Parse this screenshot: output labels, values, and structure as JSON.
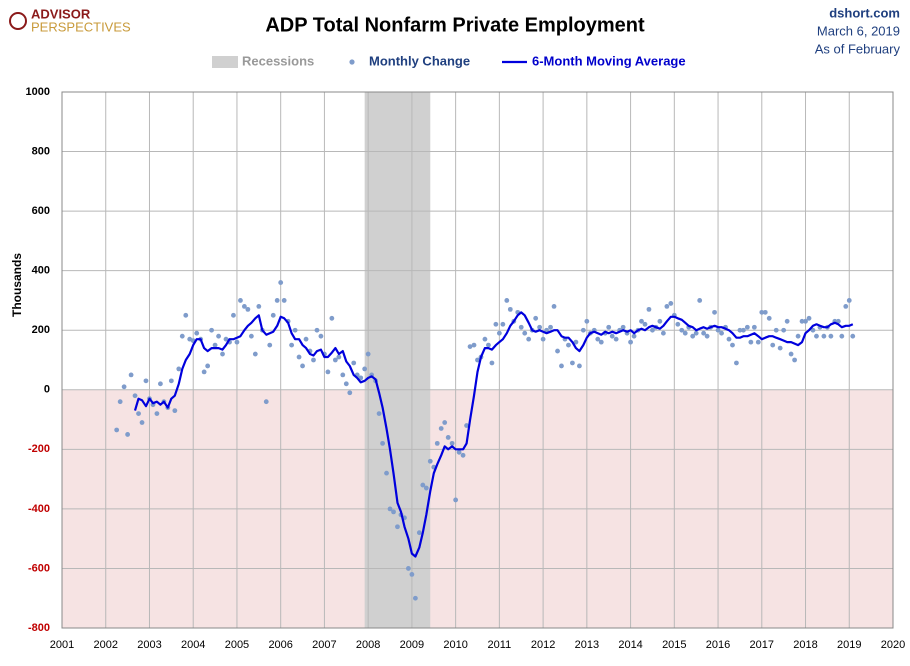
{
  "chart_data": {
    "type": "line",
    "title": "ADP Total Nonfarm Private Employment",
    "logo_top": "ADVISOR",
    "logo_bottom": "PERSPECTIVES",
    "source": "dshort.com",
    "date": "March 6, 2019",
    "as_of": "As of February",
    "ylabel": "Thousands",
    "xlim": [
      2001,
      2020
    ],
    "xticks": [
      2001,
      2002,
      2003,
      2004,
      2005,
      2006,
      2007,
      2008,
      2009,
      2010,
      2011,
      2012,
      2013,
      2014,
      2015,
      2016,
      2017,
      2018,
      2019,
      2020
    ],
    "ylim": [
      -800,
      1000
    ],
    "yticks": [
      -800,
      -600,
      -400,
      -200,
      0,
      200,
      400,
      600,
      800,
      1000
    ],
    "grid": true,
    "negative_fill": "#f6e3e3",
    "recessions": {
      "name": "Recessions",
      "color": "#d0d0d0",
      "ranges": [
        [
          2007.92,
          2009.42
        ]
      ]
    },
    "x": [
      2002.25,
      2002.33,
      2002.42,
      2002.5,
      2002.58,
      2002.67,
      2002.75,
      2002.83,
      2002.92,
      2003,
      2003.08,
      2003.17,
      2003.25,
      2003.33,
      2003.42,
      2003.5,
      2003.58,
      2003.67,
      2003.75,
      2003.83,
      2003.92,
      2004,
      2004.08,
      2004.17,
      2004.25,
      2004.33,
      2004.42,
      2004.5,
      2004.58,
      2004.67,
      2004.75,
      2004.83,
      2004.92,
      2005,
      2005.08,
      2005.17,
      2005.25,
      2005.33,
      2005.42,
      2005.5,
      2005.58,
      2005.67,
      2005.75,
      2005.83,
      2005.92,
      2006,
      2006.08,
      2006.17,
      2006.25,
      2006.33,
      2006.42,
      2006.5,
      2006.58,
      2006.67,
      2006.75,
      2006.83,
      2006.92,
      2007,
      2007.08,
      2007.17,
      2007.25,
      2007.33,
      2007.42,
      2007.5,
      2007.58,
      2007.67,
      2007.75,
      2007.83,
      2007.92,
      2008,
      2008.08,
      2008.17,
      2008.25,
      2008.33,
      2008.42,
      2008.5,
      2008.58,
      2008.67,
      2008.75,
      2008.83,
      2008.92,
      2009,
      2009.08,
      2009.17,
      2009.25,
      2009.33,
      2009.42,
      2009.5,
      2009.58,
      2009.67,
      2009.75,
      2009.83,
      2009.92,
      2010,
      2010.08,
      2010.17,
      2010.25,
      2010.33,
      2010.42,
      2010.5,
      2010.58,
      2010.67,
      2010.75,
      2010.83,
      2010.92,
      2011,
      2011.08,
      2011.17,
      2011.25,
      2011.33,
      2011.42,
      2011.5,
      2011.58,
      2011.67,
      2011.75,
      2011.83,
      2011.92,
      2012,
      2012.08,
      2012.17,
      2012.25,
      2012.33,
      2012.42,
      2012.5,
      2012.58,
      2012.67,
      2012.75,
      2012.83,
      2012.92,
      2013,
      2013.08,
      2013.17,
      2013.25,
      2013.33,
      2013.42,
      2013.5,
      2013.58,
      2013.67,
      2013.75,
      2013.83,
      2013.92,
      2014,
      2014.08,
      2014.17,
      2014.25,
      2014.33,
      2014.42,
      2014.5,
      2014.58,
      2014.67,
      2014.75,
      2014.83,
      2014.92,
      2015,
      2015.08,
      2015.17,
      2015.25,
      2015.33,
      2015.42,
      2015.5,
      2015.58,
      2015.67,
      2015.75,
      2015.83,
      2015.92,
      2016,
      2016.08,
      2016.17,
      2016.25,
      2016.33,
      2016.42,
      2016.5,
      2016.58,
      2016.67,
      2016.75,
      2016.83,
      2016.92,
      2017,
      2017.08,
      2017.17,
      2017.25,
      2017.33,
      2017.42,
      2017.5,
      2017.58,
      2017.67,
      2017.75,
      2017.83,
      2017.92,
      2018,
      2018.08,
      2018.17,
      2018.25,
      2018.33,
      2018.42,
      2018.5,
      2018.58,
      2018.67,
      2018.75,
      2018.83,
      2018.92,
      2019,
      2019.08
    ],
    "series": [
      {
        "name": "Monthly Change",
        "color": "#7f9ccb",
        "style": "dots",
        "values": [
          -135,
          -40,
          10,
          -150,
          50,
          -20,
          -80,
          -110,
          30,
          -30,
          -50,
          -80,
          20,
          -40,
          -60,
          30,
          -70,
          70,
          180,
          250,
          170,
          165,
          190,
          170,
          60,
          80,
          200,
          150,
          180,
          120,
          170,
          160,
          250,
          160,
          300,
          280,
          270,
          180,
          120,
          280,
          200,
          -40,
          150,
          250,
          300,
          360,
          300,
          230,
          150,
          200,
          110,
          80,
          170,
          130,
          100,
          200,
          180,
          120,
          60,
          240,
          100,
          110,
          50,
          20,
          -10,
          90,
          50,
          40,
          70,
          120,
          50,
          30,
          -80,
          -180,
          -280,
          -400,
          -410,
          -460,
          -420,
          -430,
          -600,
          -620,
          -700,
          -480,
          -320,
          -330,
          -240,
          -260,
          -180,
          -130,
          -110,
          -160,
          -180,
          -370,
          -210,
          -220,
          -120,
          145,
          150,
          100,
          110,
          170,
          150,
          90,
          220,
          190,
          220,
          300,
          270,
          230,
          260,
          210,
          190,
          170,
          200,
          240,
          210,
          170,
          200,
          210,
          280,
          130,
          80,
          170,
          150,
          90,
          160,
          80,
          200,
          230,
          190,
          200,
          170,
          160,
          190,
          210,
          180,
          170,
          200,
          210,
          190,
          160,
          180,
          200,
          230,
          220,
          270,
          200,
          210,
          230,
          190,
          280,
          290,
          250,
          220,
          200,
          190,
          210,
          180,
          190,
          300,
          190,
          180,
          210,
          260,
          200,
          190,
          210,
          170,
          150,
          90,
          200,
          200,
          210,
          160,
          210,
          160,
          260,
          260,
          240,
          150,
          200,
          140,
          200,
          230,
          120,
          100,
          180,
          230,
          230,
          240,
          200,
          180,
          210,
          180,
          210,
          180,
          230,
          230,
          180,
          280,
          300,
          180
        ]
      },
      {
        "name": "6-Month Moving Average",
        "color": "#0000dd",
        "style": "line",
        "values": [
          null,
          null,
          null,
          null,
          null,
          -70,
          -30,
          -35,
          -55,
          -30,
          -45,
          -40,
          -50,
          -40,
          -60,
          -30,
          -20,
          20,
          70,
          100,
          120,
          150,
          170,
          170,
          140,
          130,
          140,
          140,
          140,
          135,
          150,
          170,
          170,
          175,
          180,
          200,
          215,
          225,
          240,
          250,
          200,
          185,
          190,
          195,
          215,
          245,
          240,
          225,
          190,
          170,
          170,
          150,
          140,
          120,
          115,
          130,
          135,
          110,
          110,
          125,
          140,
          120,
          130,
          95,
          80,
          50,
          40,
          25,
          30,
          40,
          45,
          35,
          -10,
          -60,
          -130,
          -200,
          -280,
          -380,
          -410,
          -460,
          -500,
          -550,
          -560,
          -530,
          -480,
          -420,
          -340,
          -280,
          -250,
          -220,
          -190,
          -200,
          -190,
          -200,
          -200,
          -200,
          -180,
          -100,
          -20,
          60,
          110,
          140,
          140,
          135,
          150,
          160,
          170,
          190,
          215,
          230,
          250,
          260,
          250,
          225,
          200,
          195,
          200,
          195,
          190,
          195,
          200,
          200,
          180,
          175,
          175,
          160,
          140,
          130,
          150,
          175,
          190,
          195,
          190,
          185,
          195,
          190,
          195,
          190,
          195,
          200,
          195,
          200,
          190,
          200,
          205,
          200,
          210,
          215,
          210,
          205,
          215,
          230,
          245,
          245,
          240,
          235,
          225,
          215,
          210,
          200,
          205,
          210,
          205,
          210,
          215,
          210,
          210,
          205,
          200,
          190,
          175,
          175,
          180,
          180,
          185,
          190,
          180,
          170,
          175,
          180,
          180,
          175,
          170,
          165,
          160,
          160,
          155,
          150,
          160,
          190,
          200,
          215,
          220,
          215,
          210,
          210,
          220,
          225,
          220,
          210,
          215,
          215,
          220
        ]
      }
    ]
  }
}
